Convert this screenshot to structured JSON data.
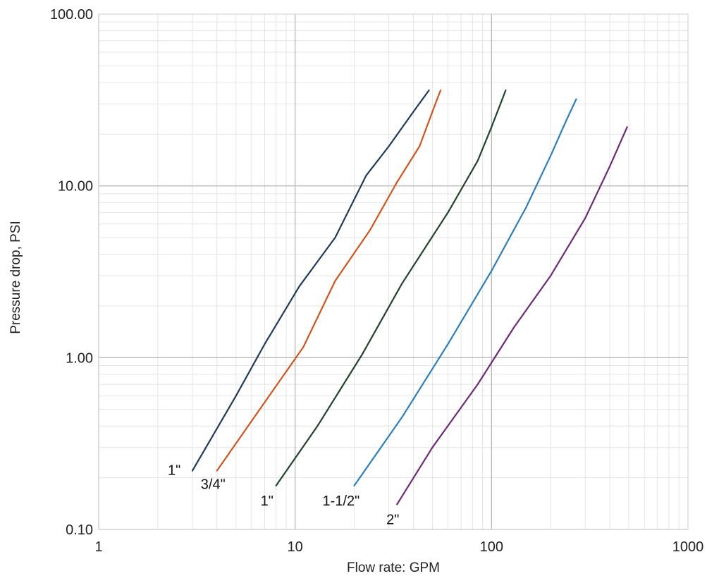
{
  "chart_data": {
    "type": "line",
    "title": "",
    "xlabel": "Flow rate: GPM",
    "ylabel": "Pressure drop, PSI",
    "xscale": "log",
    "yscale": "log",
    "xlim": [
      1,
      1000
    ],
    "ylim": [
      0.1,
      100
    ],
    "grid": true,
    "legend": "none",
    "x_ticks": [
      "1",
      "10",
      "100",
      "1000"
    ],
    "y_ticks": [
      "0.10",
      "1.00",
      "10.00",
      "100.00"
    ],
    "series": [
      {
        "name": "1\"",
        "color": "#1f3b57",
        "x": [
          3.0,
          5.0,
          7.0,
          10.5,
          16.0,
          23.0,
          30.0,
          40.0,
          48.0
        ],
        "y": [
          0.22,
          0.6,
          1.2,
          2.6,
          5.0,
          11.5,
          17.0,
          27.0,
          36.0
        ]
      },
      {
        "name": "3/4\"",
        "color": "#d1541e",
        "x": [
          4.0,
          7.0,
          11.0,
          16.0,
          24.0,
          33.0,
          43.0,
          50.0,
          55.0
        ],
        "y": [
          0.22,
          0.55,
          1.15,
          2.8,
          5.5,
          10.5,
          17.0,
          27.0,
          36.0
        ]
      },
      {
        "name": "1\"",
        "color": "#23432a",
        "x": [
          8.0,
          13.0,
          22.0,
          35.0,
          60.0,
          85.0,
          100.0,
          118.0
        ],
        "y": [
          0.18,
          0.4,
          1.05,
          2.7,
          7.0,
          14.0,
          22.0,
          36.0
        ]
      },
      {
        "name": "1-1/2\"",
        "color": "#2c7fbb",
        "x": [
          20.0,
          35.0,
          60.0,
          100.0,
          150.0,
          200.0,
          240.0,
          270.0
        ],
        "y": [
          0.18,
          0.45,
          1.2,
          3.2,
          7.5,
          15.0,
          24.0,
          32.0
        ]
      },
      {
        "name": "2\"",
        "color": "#6e2a77",
        "x": [
          33.0,
          50.0,
          85.0,
          130.0,
          200.0,
          300.0,
          400.0,
          490.0
        ],
        "y": [
          0.14,
          0.3,
          0.7,
          1.5,
          3.0,
          6.5,
          13.0,
          22.0
        ]
      }
    ]
  }
}
